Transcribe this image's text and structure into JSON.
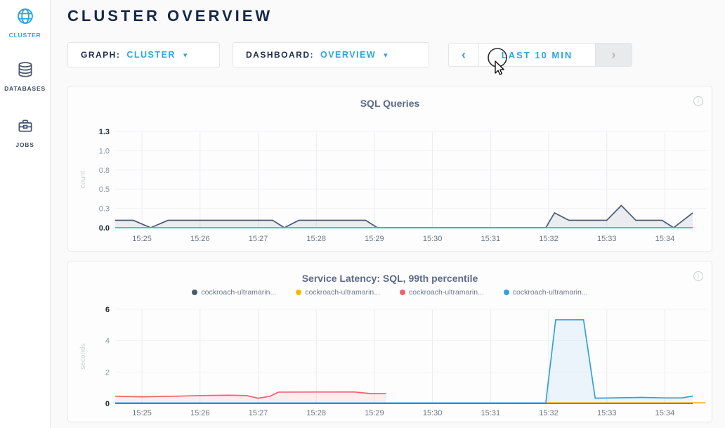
{
  "header": {
    "title": "CLUSTER OVERVIEW"
  },
  "sidebar": {
    "items": [
      {
        "label": "CLUSTER",
        "icon": "globe-icon",
        "active": true
      },
      {
        "label": "DATABASES",
        "icon": "databases-icon",
        "active": false
      },
      {
        "label": "JOBS",
        "icon": "briefcase-icon",
        "active": false
      }
    ]
  },
  "controls": {
    "graph": {
      "label": "GRAPH:",
      "value": "CLUSTER",
      "caret": "▾"
    },
    "dashboard": {
      "label": "DASHBOARD:",
      "value": "OVERVIEW",
      "caret": "▾"
    },
    "timewindow": {
      "prev": "‹",
      "label": "LAST 10 MIN",
      "next": "›"
    }
  },
  "ui": {
    "info_glyph": "i"
  },
  "colors": {
    "accent_blue": "#2aa6e0",
    "navy_text": "#16284a",
    "series_slate": "#475872",
    "series_teal": "#36c0a3",
    "series_red": "#f1606b",
    "series_yellow": "#f2b90c",
    "series_blue": "#34a0dd"
  },
  "chart_data": [
    {
      "type": "area",
      "title": "SQL Queries",
      "ylabel": "count",
      "xticks": [
        "15:25",
        "15:26",
        "15:27",
        "15:28",
        "15:29",
        "15:30",
        "15:31",
        "15:32",
        "15:33",
        "15:34"
      ],
      "yticks": [
        "0.0",
        "0.3",
        "0.5",
        "0.8",
        "1.0",
        "1.3"
      ],
      "ymax": 1.3,
      "xrange_minutes": [
        -0.46,
        9.72
      ],
      "grid": true,
      "legend_position": "none",
      "series": [
        {
          "name": "",
          "color": "#475872",
          "fill": "rgba(71,88,114,0.10)",
          "points": [
            [
              -0.46,
              0.1
            ],
            [
              -0.15,
              0.1
            ],
            [
              0.15,
              0
            ],
            [
              0.45,
              0.1
            ],
            [
              2.25,
              0.1
            ],
            [
              2.45,
              0
            ],
            [
              2.7,
              0.1
            ],
            [
              3.85,
              0.1
            ],
            [
              4.05,
              0
            ],
            [
              6.95,
              0
            ],
            [
              7.1,
              0.2
            ],
            [
              7.35,
              0.1
            ],
            [
              8.0,
              0.1
            ],
            [
              8.25,
              0.3
            ],
            [
              8.5,
              0.1
            ],
            [
              8.95,
              0.1
            ],
            [
              9.15,
              0
            ],
            [
              9.48,
              0.2
            ]
          ]
        },
        {
          "name": "",
          "color": "#36c0a3",
          "fill": "none",
          "points": [
            [
              -0.46,
              0
            ],
            [
              9.48,
              0
            ]
          ]
        }
      ]
    },
    {
      "type": "area",
      "title": "Service Latency: SQL, 99th percentile",
      "ylabel": "seconds",
      "xticks": [
        "15:25",
        "15:26",
        "15:27",
        "15:28",
        "15:29",
        "15:30",
        "15:31",
        "15:32",
        "15:33",
        "15:34"
      ],
      "yticks": [
        "0",
        "2",
        "4",
        "6"
      ],
      "ymax": 6,
      "xrange_minutes": [
        -0.46,
        9.72
      ],
      "grid": true,
      "legend_position": "top",
      "series": [
        {
          "name": "cockroach-ultramarin...",
          "color": "#475872",
          "fill": "none",
          "points": [
            [
              -0.46,
              0
            ],
            [
              9.48,
              0
            ]
          ]
        },
        {
          "name": "cockroach-ultramarin...",
          "color": "#f2b90c",
          "fill": "none",
          "points": [
            [
              6.95,
              0.04
            ],
            [
              9.7,
              0.04
            ]
          ]
        },
        {
          "name": "cockroach-ultramarin...",
          "color": "#f1606b",
          "fill": "rgba(241,96,107,0.10)",
          "points": [
            [
              -0.46,
              0.45
            ],
            [
              0.0,
              0.42
            ],
            [
              0.5,
              0.45
            ],
            [
              1.0,
              0.5
            ],
            [
              1.5,
              0.52
            ],
            [
              1.8,
              0.5
            ],
            [
              2.0,
              0.33
            ],
            [
              2.2,
              0.45
            ],
            [
              2.35,
              0.72
            ],
            [
              3.65,
              0.73
            ],
            [
              3.95,
              0.62
            ],
            [
              4.2,
              0.62
            ]
          ]
        },
        {
          "name": "cockroach-ultramarin...",
          "color": "#34a0dd",
          "fill": "rgba(52,160,221,0.09)",
          "points": [
            [
              -0.46,
              0.03
            ],
            [
              6.95,
              0.03
            ],
            [
              7.12,
              5.33
            ],
            [
              7.6,
              5.33
            ],
            [
              7.8,
              0.33
            ],
            [
              8.6,
              0.38
            ],
            [
              9.0,
              0.35
            ],
            [
              9.3,
              0.35
            ],
            [
              9.48,
              0.47
            ]
          ]
        }
      ]
    }
  ]
}
